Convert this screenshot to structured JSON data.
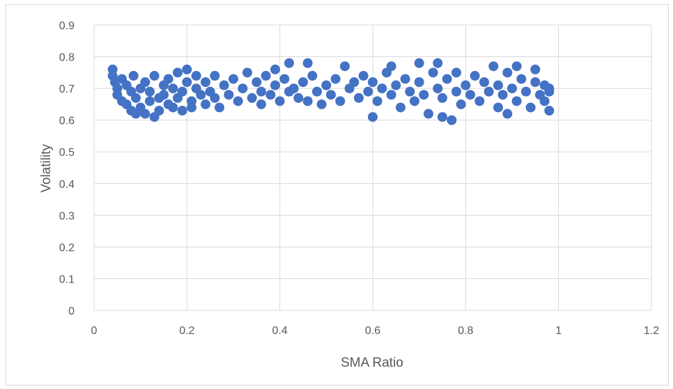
{
  "chart_data": {
    "type": "scatter",
    "title": "",
    "xlabel": "SMA Ratio",
    "ylabel": "Volatility",
    "xlim": [
      0,
      1.2
    ],
    "ylim": [
      0,
      0.9
    ],
    "xticks": [
      "0",
      "0.2",
      "0.4",
      "0.6",
      "0.8",
      "1",
      "1.2"
    ],
    "yticks": [
      "0",
      "0.1",
      "0.2",
      "0.3",
      "0.4",
      "0.5",
      "0.6",
      "0.7",
      "0.8",
      "0.9"
    ],
    "grid": true,
    "legend": "none",
    "marker_color": "#4472C4",
    "series": [
      {
        "points": [
          [
            0.04,
            0.76
          ],
          [
            0.04,
            0.74
          ],
          [
            0.045,
            0.72
          ],
          [
            0.05,
            0.7
          ],
          [
            0.05,
            0.68
          ],
          [
            0.06,
            0.66
          ],
          [
            0.06,
            0.73
          ],
          [
            0.07,
            0.65
          ],
          [
            0.07,
            0.71
          ],
          [
            0.08,
            0.63
          ],
          [
            0.08,
            0.69
          ],
          [
            0.085,
            0.74
          ],
          [
            0.09,
            0.62
          ],
          [
            0.09,
            0.67
          ],
          [
            0.1,
            0.7
          ],
          [
            0.1,
            0.64
          ],
          [
            0.11,
            0.72
          ],
          [
            0.11,
            0.62
          ],
          [
            0.12,
            0.66
          ],
          [
            0.12,
            0.69
          ],
          [
            0.13,
            0.61
          ],
          [
            0.13,
            0.74
          ],
          [
            0.14,
            0.67
          ],
          [
            0.14,
            0.63
          ],
          [
            0.15,
            0.71
          ],
          [
            0.15,
            0.68
          ],
          [
            0.16,
            0.65
          ],
          [
            0.16,
            0.73
          ],
          [
            0.17,
            0.7
          ],
          [
            0.17,
            0.64
          ],
          [
            0.18,
            0.75
          ],
          [
            0.18,
            0.67
          ],
          [
            0.19,
            0.63
          ],
          [
            0.19,
            0.69
          ],
          [
            0.2,
            0.72
          ],
          [
            0.2,
            0.76
          ],
          [
            0.21,
            0.66
          ],
          [
            0.21,
            0.64
          ],
          [
            0.22,
            0.7
          ],
          [
            0.22,
            0.74
          ],
          [
            0.23,
            0.68
          ],
          [
            0.24,
            0.65
          ],
          [
            0.24,
            0.72
          ],
          [
            0.25,
            0.69
          ],
          [
            0.26,
            0.67
          ],
          [
            0.26,
            0.74
          ],
          [
            0.27,
            0.64
          ],
          [
            0.28,
            0.71
          ],
          [
            0.29,
            0.68
          ],
          [
            0.3,
            0.73
          ],
          [
            0.31,
            0.66
          ],
          [
            0.32,
            0.7
          ],
          [
            0.33,
            0.75
          ],
          [
            0.34,
            0.67
          ],
          [
            0.35,
            0.72
          ],
          [
            0.36,
            0.65
          ],
          [
            0.36,
            0.69
          ],
          [
            0.37,
            0.74
          ],
          [
            0.38,
            0.68
          ],
          [
            0.39,
            0.71
          ],
          [
            0.39,
            0.76
          ],
          [
            0.4,
            0.66
          ],
          [
            0.41,
            0.73
          ],
          [
            0.42,
            0.69
          ],
          [
            0.42,
            0.78
          ],
          [
            0.43,
            0.7
          ],
          [
            0.44,
            0.67
          ],
          [
            0.45,
            0.72
          ],
          [
            0.46,
            0.78
          ],
          [
            0.46,
            0.66
          ],
          [
            0.47,
            0.74
          ],
          [
            0.48,
            0.69
          ],
          [
            0.49,
            0.65
          ],
          [
            0.5,
            0.71
          ],
          [
            0.51,
            0.68
          ],
          [
            0.52,
            0.73
          ],
          [
            0.53,
            0.66
          ],
          [
            0.54,
            0.77
          ],
          [
            0.55,
            0.7
          ],
          [
            0.56,
            0.72
          ],
          [
            0.57,
            0.67
          ],
          [
            0.58,
            0.74
          ],
          [
            0.59,
            0.69
          ],
          [
            0.6,
            0.61
          ],
          [
            0.6,
            0.72
          ],
          [
            0.61,
            0.66
          ],
          [
            0.62,
            0.7
          ],
          [
            0.63,
            0.75
          ],
          [
            0.64,
            0.68
          ],
          [
            0.64,
            0.77
          ],
          [
            0.65,
            0.71
          ],
          [
            0.66,
            0.64
          ],
          [
            0.67,
            0.73
          ],
          [
            0.68,
            0.69
          ],
          [
            0.69,
            0.66
          ],
          [
            0.7,
            0.72
          ],
          [
            0.7,
            0.78
          ],
          [
            0.71,
            0.68
          ],
          [
            0.72,
            0.62
          ],
          [
            0.73,
            0.75
          ],
          [
            0.74,
            0.7
          ],
          [
            0.74,
            0.78
          ],
          [
            0.75,
            0.61
          ],
          [
            0.75,
            0.67
          ],
          [
            0.76,
            0.73
          ],
          [
            0.77,
            0.6
          ],
          [
            0.78,
            0.69
          ],
          [
            0.78,
            0.75
          ],
          [
            0.79,
            0.65
          ],
          [
            0.8,
            0.71
          ],
          [
            0.81,
            0.68
          ],
          [
            0.82,
            0.74
          ],
          [
            0.83,
            0.66
          ],
          [
            0.84,
            0.72
          ],
          [
            0.85,
            0.69
          ],
          [
            0.86,
            0.77
          ],
          [
            0.87,
            0.64
          ],
          [
            0.87,
            0.71
          ],
          [
            0.88,
            0.68
          ],
          [
            0.89,
            0.62
          ],
          [
            0.89,
            0.75
          ],
          [
            0.9,
            0.7
          ],
          [
            0.91,
            0.77
          ],
          [
            0.91,
            0.66
          ],
          [
            0.92,
            0.73
          ],
          [
            0.93,
            0.69
          ],
          [
            0.94,
            0.64
          ],
          [
            0.95,
            0.72
          ],
          [
            0.95,
            0.76
          ],
          [
            0.96,
            0.68
          ],
          [
            0.97,
            0.71
          ],
          [
            0.97,
            0.66
          ],
          [
            0.98,
            0.7
          ],
          [
            0.98,
            0.63
          ],
          [
            0.98,
            0.69
          ]
        ]
      }
    ]
  }
}
